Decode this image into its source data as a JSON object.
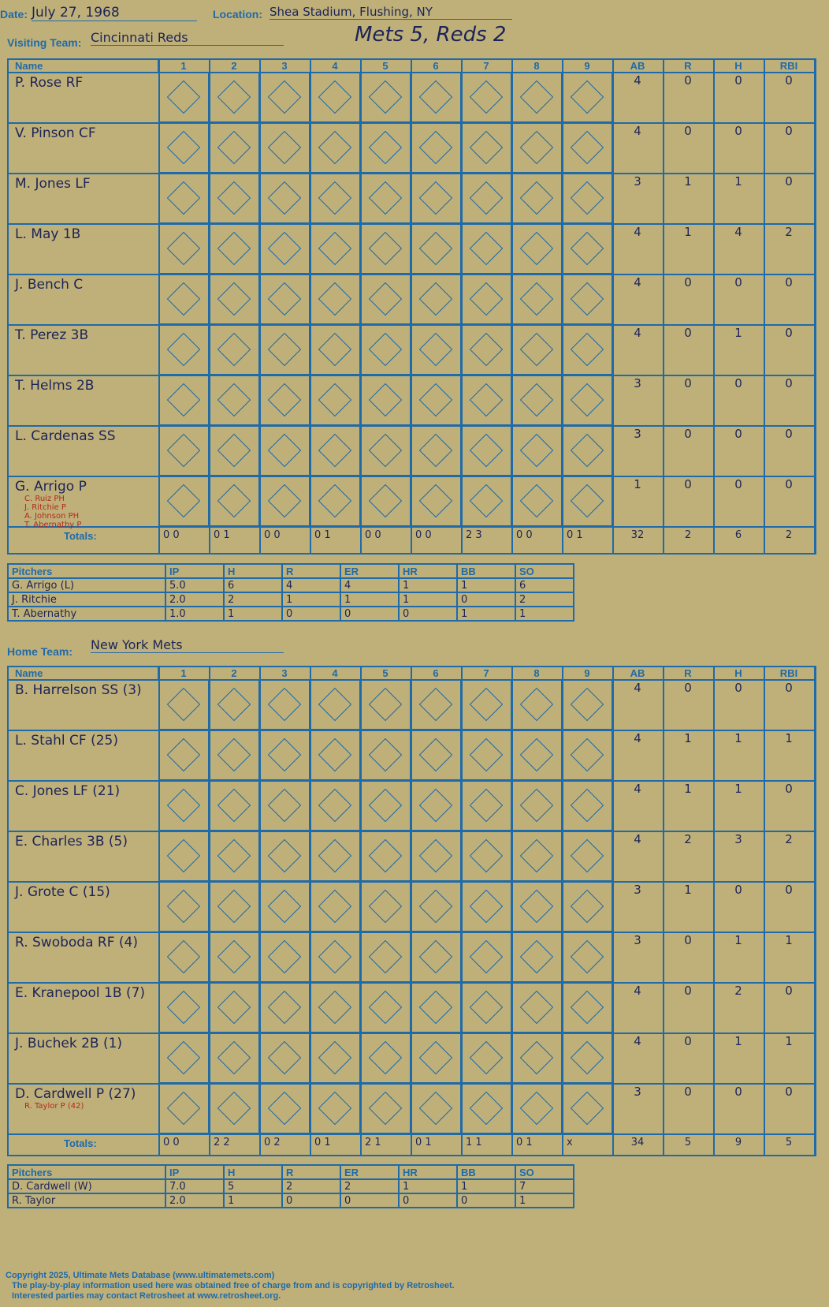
{
  "header": {
    "date_label": "Date:",
    "date": "July 27, 1968",
    "location_label": "Location:",
    "location": "Shea Stadium, Flushing, NY",
    "visiting_label": "Visiting Team:",
    "visiting_team": "Cincinnati Reds",
    "home_label": "Home Team:",
    "home_team": "New York Mets",
    "result": "Mets 5, Reds 2"
  },
  "columns": {
    "name": "Name",
    "innings": [
      "1",
      "2",
      "3",
      "4",
      "5",
      "6",
      "7",
      "8",
      "9"
    ],
    "stats": [
      "AB",
      "R",
      "H",
      "RBI"
    ]
  },
  "watermark": {
    "line1": "Ultimate",
    "line2": "Mets",
    "line3": "Database",
    "url": "ultimatemets.com"
  },
  "visitors": {
    "players": [
      {
        "name": "P. Rose RF",
        "ab": "4",
        "r": "0",
        "h": "0",
        "rbi": "0"
      },
      {
        "name": "V. Pinson CF",
        "ab": "4",
        "r": "0",
        "h": "0",
        "rbi": "0"
      },
      {
        "name": "M. Jones LF",
        "ab": "3",
        "r": "1",
        "h": "1",
        "rbi": "0"
      },
      {
        "name": "L. May 1B",
        "ab": "4",
        "r": "1",
        "h": "4",
        "rbi": "2"
      },
      {
        "name": "J. Bench C",
        "ab": "4",
        "r": "0",
        "h": "0",
        "rbi": "0"
      },
      {
        "name": "T. Perez 3B",
        "ab": "4",
        "r": "0",
        "h": "1",
        "rbi": "0"
      },
      {
        "name": "T. Helms 2B",
        "ab": "3",
        "r": "0",
        "h": "0",
        "rbi": "0"
      },
      {
        "name": "L. Cardenas SS",
        "ab": "3",
        "r": "0",
        "h": "0",
        "rbi": "0"
      },
      {
        "name": "G. Arrigo P",
        "ab": "1",
        "r": "0",
        "h": "0",
        "rbi": "0"
      }
    ],
    "subs": [
      "C. Ruiz PH",
      "J. Ritchie P",
      "A. Johnson PH",
      "T. Abernathy P"
    ],
    "totals_label": "Totals:",
    "totals": [
      "0 0",
      "0 1",
      "0 0",
      "0 1",
      "0 0",
      "0 0",
      "2 3",
      "0 0",
      "0 1"
    ],
    "totals_stats": [
      "32",
      "2",
      "6",
      "2"
    ],
    "pitchers_label": "Pitchers",
    "pitcher_cols": [
      "IP",
      "H",
      "R",
      "ER",
      "HR",
      "BB",
      "SO"
    ],
    "pitchers": [
      [
        "G. Arrigo (L)",
        "5.0",
        "6",
        "4",
        "4",
        "1",
        "1",
        "6"
      ],
      [
        "J. Ritchie",
        "2.0",
        "2",
        "1",
        "1",
        "1",
        "0",
        "2"
      ],
      [
        "T. Abernathy",
        "1.0",
        "1",
        "0",
        "0",
        "0",
        "1",
        "1"
      ]
    ]
  },
  "home": {
    "players": [
      {
        "name": "B. Harrelson SS (3)",
        "ab": "4",
        "r": "0",
        "h": "0",
        "rbi": "0"
      },
      {
        "name": "L. Stahl CF (25)",
        "ab": "4",
        "r": "1",
        "h": "1",
        "rbi": "1"
      },
      {
        "name": "C. Jones LF (21)",
        "ab": "4",
        "r": "1",
        "h": "1",
        "rbi": "0"
      },
      {
        "name": "E. Charles 3B (5)",
        "ab": "4",
        "r": "2",
        "h": "3",
        "rbi": "2"
      },
      {
        "name": "J. Grote C (15)",
        "ab": "3",
        "r": "1",
        "h": "0",
        "rbi": "0"
      },
      {
        "name": "R. Swoboda RF (4)",
        "ab": "3",
        "r": "0",
        "h": "1",
        "rbi": "1"
      },
      {
        "name": "E. Kranepool 1B (7)",
        "ab": "4",
        "r": "0",
        "h": "2",
        "rbi": "0"
      },
      {
        "name": "J. Buchek 2B (1)",
        "ab": "4",
        "r": "0",
        "h": "1",
        "rbi": "1"
      },
      {
        "name": "D. Cardwell P (27)",
        "ab": "3",
        "r": "0",
        "h": "0",
        "rbi": "0"
      }
    ],
    "subs": [
      "R. Taylor P (42)"
    ],
    "totals_label": "Totals:",
    "totals": [
      "0 0",
      "2 2",
      "0 2",
      "0 1",
      "2 1",
      "0 1",
      "1 1",
      "0 1",
      "x"
    ],
    "totals_stats": [
      "34",
      "5",
      "9",
      "5"
    ],
    "pitchers_label": "Pitchers",
    "pitcher_cols": [
      "IP",
      "H",
      "R",
      "ER",
      "HR",
      "BB",
      "SO"
    ],
    "pitchers": [
      [
        "D. Cardwell (W)",
        "7.0",
        "5",
        "2",
        "2",
        "1",
        "1",
        "7"
      ],
      [
        "R. Taylor",
        "2.0",
        "1",
        "0",
        "0",
        "0",
        "0",
        "1"
      ]
    ]
  },
  "footer": {
    "line1": "Copyright 2025, Ultimate Mets Database (www.ultimatemets.com)",
    "line2": "The play-by-play information used here was obtained free of charge from and is copyrighted by Retrosheet.",
    "line3": "Interested parties may contact Retrosheet at www.retrosheet.org."
  },
  "colors": {
    "background": "#bfb07a",
    "grid": "#1f6aa8",
    "dark_cell": "#5b5a4a",
    "ink": "#1c2457",
    "red_note": "#d42020"
  }
}
